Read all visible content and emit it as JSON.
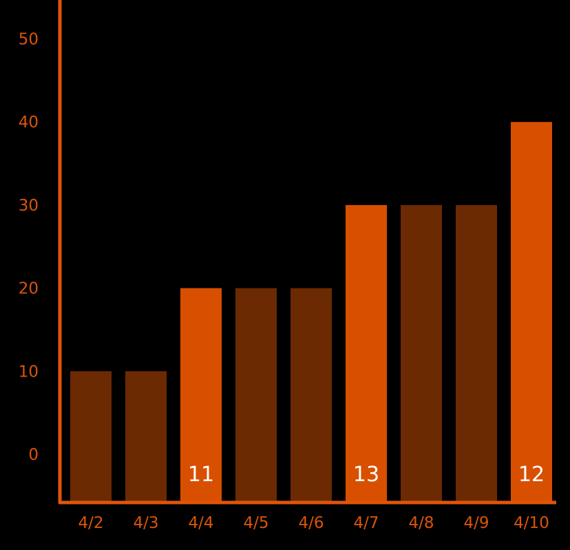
{
  "colors": {
    "background": "#000000",
    "accent": "#d94f00",
    "bar_dark": "#6b2a02",
    "axis": "#e0550a",
    "tick_label": "#d9550a",
    "value_label": "#ffffff"
  },
  "chart_data": {
    "type": "bar",
    "categories": [
      "4/2",
      "4/3",
      "4/4",
      "4/5",
      "4/6",
      "4/7",
      "4/8",
      "4/9",
      "4/10"
    ],
    "values": [
      10,
      10,
      20,
      20,
      20,
      30,
      30,
      30,
      40
    ],
    "highlighted": [
      false,
      false,
      true,
      false,
      false,
      true,
      false,
      false,
      true
    ],
    "bar_labels": [
      "",
      "",
      "11",
      "",
      "",
      "13",
      "",
      "",
      "12"
    ],
    "y_ticks": [
      0,
      10,
      20,
      30,
      40,
      50
    ],
    "y_tick_labels": [
      "0",
      "10",
      "20",
      "30",
      "40",
      "50"
    ],
    "ylim": [
      0,
      50
    ],
    "title": "",
    "xlabel": "",
    "ylabel": "",
    "grid": false,
    "legend": "none"
  }
}
